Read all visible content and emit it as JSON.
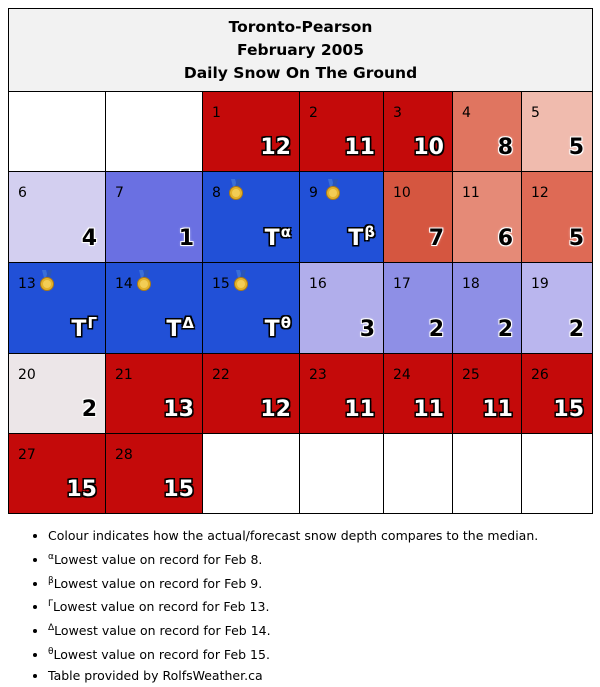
{
  "header": {
    "station": "Toronto-Pearson",
    "month": "February 2005",
    "subject": "Daily Snow On The Ground"
  },
  "colors": {
    "record_low": "#2150d7",
    "far_above_median": "#c40a0a"
  },
  "weeks": [
    [
      {
        "blank": true
      },
      {
        "blank": true
      },
      {
        "day": "1",
        "value": "12",
        "bg": "#c40a0a",
        "tone": "dk"
      },
      {
        "day": "2",
        "value": "11",
        "bg": "#c40a0a",
        "tone": "dk"
      },
      {
        "day": "3",
        "value": "10",
        "bg": "#c40a0a",
        "tone": "dk"
      },
      {
        "day": "4",
        "value": "8",
        "bg": "#e07560",
        "tone": "lt"
      },
      {
        "day": "5",
        "value": "5",
        "bg": "#f0bbae",
        "tone": "lt"
      }
    ],
    [
      {
        "day": "6",
        "value": "4",
        "bg": "#d3cff0",
        "tone": "lt"
      },
      {
        "day": "7",
        "value": "1",
        "bg": "#6a70e2",
        "tone": "lt"
      },
      {
        "day": "8",
        "value": "T",
        "sup": "α",
        "medal": true,
        "bg": "#2150d7",
        "tone": "dk"
      },
      {
        "day": "9",
        "value": "T",
        "sup": "β",
        "medal": true,
        "bg": "#2150d7",
        "tone": "dk"
      },
      {
        "day": "10",
        "value": "7",
        "bg": "#d55640",
        "tone": "lt"
      },
      {
        "day": "11",
        "value": "6",
        "bg": "#e58a77",
        "tone": "lt"
      },
      {
        "day": "12",
        "value": "5",
        "bg": "#de6a55",
        "tone": "lt"
      }
    ],
    [
      {
        "day": "13",
        "value": "T",
        "sup": "Γ",
        "medal": true,
        "bg": "#2150d7",
        "tone": "dk"
      },
      {
        "day": "14",
        "value": "T",
        "sup": "Δ",
        "medal": true,
        "bg": "#2150d7",
        "tone": "dk"
      },
      {
        "day": "15",
        "value": "T",
        "sup": "θ",
        "medal": true,
        "bg": "#2150d7",
        "tone": "dk"
      },
      {
        "day": "16",
        "value": "3",
        "bg": "#b1aeeb",
        "tone": "lt"
      },
      {
        "day": "17",
        "value": "2",
        "bg": "#8e8fe6",
        "tone": "lt"
      },
      {
        "day": "18",
        "value": "2",
        "bg": "#8e8fe6",
        "tone": "lt"
      },
      {
        "day": "19",
        "value": "2",
        "bg": "#bab6ee",
        "tone": "lt"
      }
    ],
    [
      {
        "day": "20",
        "value": "2",
        "bg": "#ece6e8",
        "tone": "lt"
      },
      {
        "day": "21",
        "value": "13",
        "bg": "#c40a0a",
        "tone": "dk"
      },
      {
        "day": "22",
        "value": "12",
        "bg": "#c40a0a",
        "tone": "dk"
      },
      {
        "day": "23",
        "value": "11",
        "bg": "#c40a0a",
        "tone": "dk"
      },
      {
        "day": "24",
        "value": "11",
        "bg": "#c40a0a",
        "tone": "dk"
      },
      {
        "day": "25",
        "value": "11",
        "bg": "#c40a0a",
        "tone": "dk"
      },
      {
        "day": "26",
        "value": "15",
        "bg": "#c40a0a",
        "tone": "dk"
      }
    ],
    [
      {
        "day": "27",
        "value": "15",
        "bg": "#c40a0a",
        "tone": "dk"
      },
      {
        "day": "28",
        "value": "15",
        "bg": "#c40a0a",
        "tone": "dk"
      },
      {
        "blank": true
      },
      {
        "blank": true
      },
      {
        "blank": true
      },
      {
        "blank": true
      },
      {
        "blank": true
      }
    ]
  ],
  "notes": [
    {
      "text": "Colour indicates how the actual/forecast snow depth compares to the median."
    },
    {
      "sup": "α",
      "text": "Lowest value on record for Feb 8."
    },
    {
      "sup": "β",
      "text": "Lowest value on record for Feb 9."
    },
    {
      "sup": "Γ",
      "text": "Lowest value on record for Feb 13."
    },
    {
      "sup": "Δ",
      "text": "Lowest value on record for Feb 14."
    },
    {
      "sup": "θ",
      "text": "Lowest value on record for Feb 15."
    },
    {
      "text": "Table provided by RolfsWeather.ca"
    }
  ]
}
